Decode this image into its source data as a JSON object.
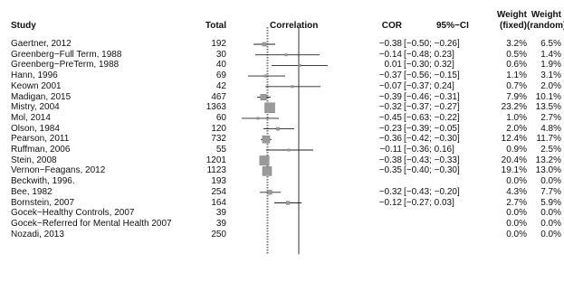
{
  "headers": {
    "study": "Study",
    "total": "Total",
    "correlation": "Correlation",
    "cor": "COR",
    "ci": "95%−CI",
    "weight_fixed": [
      "Weight",
      "(fixed)"
    ],
    "weight_random": [
      "Weight",
      "(random)"
    ]
  },
  "chart_data": {
    "type": "forest",
    "x_reference_line": 0,
    "pooled_fixed": -0.35,
    "pooled_random": -0.34,
    "rows": [
      {
        "study": "Gaertner, 2012",
        "total": "192",
        "cor": "−0.38",
        "ci_text": "[−0.50; −0.26]",
        "w_fixed": "3.2%",
        "w_random": "6.5%",
        "est": -0.38,
        "lo": -0.5,
        "hi": -0.26
      },
      {
        "study": "Greenberg−Full Term, 1988",
        "total": "30",
        "cor": "−0.14",
        "ci_text": "[−0.48; 0.23]",
        "w_fixed": "0.5%",
        "w_random": "1.4%",
        "est": -0.14,
        "lo": -0.48,
        "hi": 0.23
      },
      {
        "study": "Greenberg−PreTerm, 1988",
        "total": "40",
        "cor": "0.01",
        "ci_text": "[−0.30; 0.32]",
        "w_fixed": "0.6%",
        "w_random": "1.9%",
        "est": 0.01,
        "lo": -0.3,
        "hi": 0.32
      },
      {
        "study": "Hann, 1996",
        "total": "69",
        "cor": "−0.37",
        "ci_text": "[−0.56; −0.15]",
        "w_fixed": "1.1%",
        "w_random": "3.1%",
        "est": -0.37,
        "lo": -0.56,
        "hi": -0.15
      },
      {
        "study": "Keown 2001",
        "total": "42",
        "cor": "−0.07",
        "ci_text": "[−0.37; 0.24]",
        "w_fixed": "0.7%",
        "w_random": "2.0%",
        "est": -0.07,
        "lo": -0.37,
        "hi": 0.24
      },
      {
        "study": "Madigan, 2015",
        "total": "467",
        "cor": "−0.39",
        "ci_text": "[−0.46; −0.31]",
        "w_fixed": "7.9%",
        "w_random": "10.1%",
        "est": -0.39,
        "lo": -0.46,
        "hi": -0.31
      },
      {
        "study": "Mistry, 2004",
        "total": "1363",
        "cor": "−0.32",
        "ci_text": "[−0.37; −0.27]",
        "w_fixed": "23.2%",
        "w_random": "13.5%",
        "est": -0.32,
        "lo": -0.37,
        "hi": -0.27
      },
      {
        "study": "Mol, 2014",
        "total": "60",
        "cor": "−0.45",
        "ci_text": "[−0.63; −0.22]",
        "w_fixed": "1.0%",
        "w_random": "2.7%",
        "est": -0.45,
        "lo": -0.63,
        "hi": -0.22
      },
      {
        "study": "Olson, 1984",
        "total": "120",
        "cor": "−0.23",
        "ci_text": "[−0.39; −0.05]",
        "w_fixed": "2.0%",
        "w_random": "4.8%",
        "est": -0.23,
        "lo": -0.39,
        "hi": -0.05
      },
      {
        "study": "Pearson, 2011",
        "total": "732",
        "cor": "−0.36",
        "ci_text": "[−0.42; −0.30]",
        "w_fixed": "12.4%",
        "w_random": "11.7%",
        "est": -0.36,
        "lo": -0.42,
        "hi": -0.3
      },
      {
        "study": "Ruffman, 2006",
        "total": "55",
        "cor": "−0.11",
        "ci_text": "[−0.36; 0.16]",
        "w_fixed": "0.9%",
        "w_random": "2.5%",
        "est": -0.11,
        "lo": -0.36,
        "hi": 0.16
      },
      {
        "study": "Stein, 2008",
        "total": "1201",
        "cor": "−0.38",
        "ci_text": "[−0.43; −0.33]",
        "w_fixed": "20.4%",
        "w_random": "13.2%",
        "est": -0.38,
        "lo": -0.43,
        "hi": -0.33
      },
      {
        "study": "Vernon−Feagans, 2012",
        "total": "1123",
        "cor": "−0.35",
        "ci_text": "[−0.40; −0.30]",
        "w_fixed": "19.1%",
        "w_random": "13.0%",
        "est": -0.35,
        "lo": -0.4,
        "hi": -0.3
      },
      {
        "study": "Beckwith, 1996.",
        "total": "193",
        "cor": "",
        "ci_text": "",
        "w_fixed": "0.0%",
        "w_random": "0.0%",
        "est": null,
        "lo": null,
        "hi": null
      },
      {
        "study": "Bee, 1982",
        "total": "254",
        "cor": "−0.32",
        "ci_text": "[−0.43; −0.20]",
        "w_fixed": "4.3%",
        "w_random": "7.7%",
        "est": -0.32,
        "lo": -0.43,
        "hi": -0.2
      },
      {
        "study": "Bornstein, 2007",
        "total": "164",
        "cor": "−0.12",
        "ci_text": "[−0.27; 0.03]",
        "w_fixed": "2.7%",
        "w_random": "5.9%",
        "est": -0.12,
        "lo": -0.27,
        "hi": 0.03
      },
      {
        "study": "Gocek−Healthy Controls, 2007",
        "total": "39",
        "cor": "",
        "ci_text": "",
        "w_fixed": "0.0%",
        "w_random": "0.0%",
        "est": null,
        "lo": null,
        "hi": null
      },
      {
        "study": "Gocek−Referred for Mental Health 2007",
        "total": "39",
        "cor": "",
        "ci_text": "",
        "w_fixed": "0.0%",
        "w_random": "0.0%",
        "est": null,
        "lo": null,
        "hi": null
      },
      {
        "study": "Nozadi, 2013",
        "total": "250",
        "cor": "",
        "ci_text": "",
        "w_fixed": "0.0%",
        "w_random": "0.0%",
        "est": null,
        "lo": null,
        "hi": null
      }
    ]
  }
}
